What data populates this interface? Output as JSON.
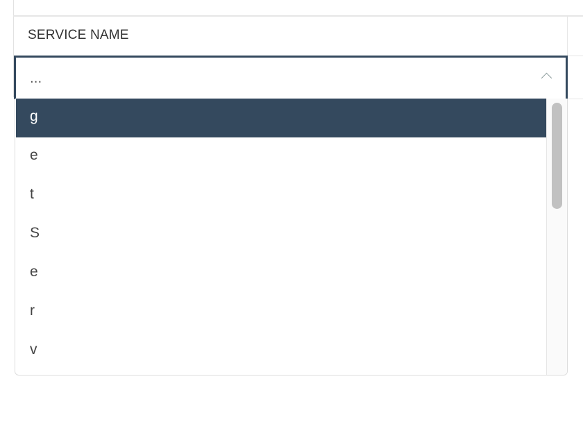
{
  "field": {
    "label": "SERVICE NAME",
    "value": "...",
    "icon": "chevron-up-icon"
  },
  "dropdown": {
    "options": [
      "g",
      "e",
      "t",
      "S",
      "e",
      "r",
      "v"
    ],
    "selected_index": 0,
    "highlight_color": "#34495e"
  }
}
